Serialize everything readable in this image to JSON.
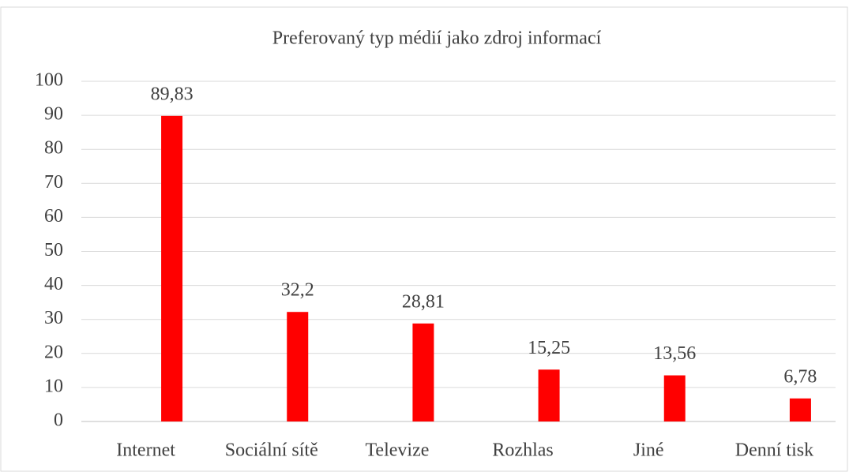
{
  "chart_data": {
    "type": "bar",
    "title": "Preferovaný typ médií jako zdroj informací",
    "categories": [
      "Internet",
      "Sociální sítě",
      "Televize",
      "Rozhlas",
      "Jiné",
      "Denní tisk"
    ],
    "values": [
      89.83,
      32.2,
      28.81,
      15.25,
      13.56,
      6.78
    ],
    "value_labels": [
      "89,83",
      "32,2",
      "28,81",
      "15,25",
      "13,56",
      "6,78"
    ],
    "color": "#ff0000",
    "ylim": [
      0,
      100
    ],
    "yticks": [
      0,
      10,
      20,
      30,
      40,
      50,
      60,
      70,
      80,
      90,
      100
    ],
    "grid": true
  }
}
